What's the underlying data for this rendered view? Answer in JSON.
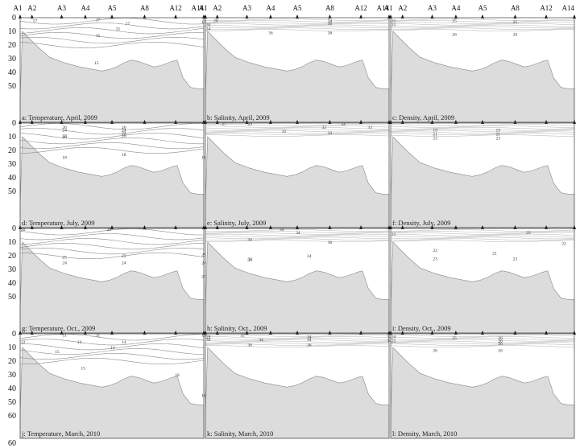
{
  "chart_data": {
    "type": "contour",
    "stations": [
      "A1",
      "A2",
      "A3",
      "A4",
      "A5",
      "A8",
      "A12",
      "A14"
    ],
    "station_distance": [
      0,
      16,
      56,
      88,
      124,
      168,
      210,
      248
    ],
    "y_axis": {
      "ticks": [
        0,
        10,
        20,
        30,
        40,
        50,
        60
      ],
      "ylim": [
        0,
        60
      ],
      "inverted": true
    },
    "bathymetry": {
      "x": [
        0,
        3,
        12,
        25,
        40,
        60,
        80,
        100,
        110,
        120,
        130,
        140,
        150,
        160,
        170,
        180,
        190,
        200,
        205,
        212,
        220,
        230,
        240,
        248
      ],
      "depth": [
        60,
        10,
        15,
        22,
        29,
        33,
        36,
        38,
        39,
        38,
        36,
        33,
        31,
        32,
        34,
        36,
        35,
        33,
        32,
        31,
        44,
        51,
        52,
        52
      ]
    },
    "panels": [
      {
        "caption": "a: Temperature, April, 2009",
        "labels": [
          {
            "t": "17",
            "d": 2,
            "x": 20
          },
          {
            "t": "17",
            "d": 1.5,
            "x": 105
          },
          {
            "t": "17",
            "d": 4,
            "x": 145
          },
          {
            "t": "17",
            "d": 3,
            "x": 248
          },
          {
            "t": "15",
            "d": 8,
            "x": 132
          },
          {
            "t": "15",
            "d": 13,
            "x": 105
          },
          {
            "t": "15",
            "d": 33,
            "x": 103
          }
        ]
      },
      {
        "caption": "b: Salinity, April, 2009",
        "labels": [
          {
            "t": "28",
            "d": 2,
            "x": 14
          },
          {
            "t": "30",
            "d": 5,
            "x": 4
          },
          {
            "t": "34",
            "d": 8,
            "x": 4
          },
          {
            "t": "34",
            "d": 2,
            "x": 168
          },
          {
            "t": "36",
            "d": 4,
            "x": 168
          },
          {
            "t": "36",
            "d": 11,
            "x": 88
          },
          {
            "t": "36",
            "d": 11,
            "x": 168
          }
        ]
      },
      {
        "caption": "c: Density, April, 2009",
        "labels": [
          {
            "t": "21",
            "d": 2,
            "x": 4
          },
          {
            "t": "25",
            "d": 5,
            "x": 4
          },
          {
            "t": "25",
            "d": 2,
            "x": 86
          },
          {
            "t": "25",
            "d": 3,
            "x": 168
          },
          {
            "t": "26",
            "d": 12,
            "x": 86
          },
          {
            "t": "26",
            "d": 12,
            "x": 168
          }
        ]
      },
      {
        "caption": "d: Temperature, July, 2009",
        "labels": [
          {
            "t": "26",
            "d": 3,
            "x": 60
          },
          {
            "t": "24",
            "d": 5,
            "x": 60
          },
          {
            "t": "22",
            "d": 9,
            "x": 60
          },
          {
            "t": "20",
            "d": 10,
            "x": 60
          },
          {
            "t": "26",
            "d": 3,
            "x": 140
          },
          {
            "t": "24",
            "d": 5,
            "x": 140
          },
          {
            "t": "22",
            "d": 7,
            "x": 140
          },
          {
            "t": "20",
            "d": 9,
            "x": 140
          },
          {
            "t": "18",
            "d": 25,
            "x": 60
          },
          {
            "t": "18",
            "d": 23,
            "x": 140
          },
          {
            "t": "18",
            "d": 25,
            "x": 248
          }
        ]
      },
      {
        "caption": "e: Salinity, July, 2009",
        "labels": [
          {
            "t": "27",
            "d": 0.5,
            "x": 25
          },
          {
            "t": "29",
            "d": 0.5,
            "x": 60
          },
          {
            "t": "32",
            "d": 6,
            "x": 106
          },
          {
            "t": "32",
            "d": 3,
            "x": 160
          },
          {
            "t": "33",
            "d": 3,
            "x": 222
          },
          {
            "t": "33",
            "d": 7,
            "x": 168
          },
          {
            "t": "34",
            "d": 0.5,
            "x": 186
          }
        ]
      },
      {
        "caption": "f: Density, July, 2009",
        "labels": [
          {
            "t": "19",
            "d": 5,
            "x": 60
          },
          {
            "t": "21",
            "d": 8,
            "x": 60
          },
          {
            "t": "23",
            "d": 11,
            "x": 60
          },
          {
            "t": "19",
            "d": 5,
            "x": 145
          },
          {
            "t": "21",
            "d": 8,
            "x": 145
          },
          {
            "t": "23",
            "d": 11,
            "x": 145
          }
        ]
      },
      {
        "caption": "g: Temperature, Oct., 2009",
        "labels": [
          {
            "t": "26",
            "d": 0.5,
            "x": 4
          },
          {
            "t": "26",
            "d": 0.5,
            "x": 120
          },
          {
            "t": "25",
            "d": 21,
            "x": 60
          },
          {
            "t": "25",
            "d": 20,
            "x": 140
          },
          {
            "t": "25",
            "d": 19,
            "x": 248
          },
          {
            "t": "24",
            "d": 25,
            "x": 60
          },
          {
            "t": "24",
            "d": 25,
            "x": 140
          },
          {
            "t": "24",
            "d": 25,
            "x": 248
          },
          {
            "t": "23",
            "d": 35,
            "x": 248
          }
        ]
      },
      {
        "caption": "h: Salinity, Oct., 2009",
        "labels": [
          {
            "t": "34",
            "d": 0.5,
            "x": 103
          },
          {
            "t": "34",
            "d": 8,
            "x": 60
          },
          {
            "t": "34",
            "d": 3,
            "x": 125
          },
          {
            "t": "36",
            "d": 10,
            "x": 168
          },
          {
            "t": "34",
            "d": 22,
            "x": 60
          },
          {
            "t": "34",
            "d": 20,
            "x": 140
          },
          {
            "t": "34",
            "d": 23,
            "x": 60
          }
        ]
      },
      {
        "caption": "i: Density, Oct., 2009",
        "labels": [
          {
            "t": "21",
            "d": 4,
            "x": 4
          },
          {
            "t": "22",
            "d": 3,
            "x": 186
          },
          {
            "t": "22",
            "d": 16,
            "x": 60
          },
          {
            "t": "22",
            "d": 18,
            "x": 140
          },
          {
            "t": "22",
            "d": 11,
            "x": 234
          },
          {
            "t": "23",
            "d": 22,
            "x": 60
          },
          {
            "t": "23",
            "d": 22,
            "x": 168
          }
        ]
      },
      {
        "caption": "j: Temperature, March, 2010",
        "labels": [
          {
            "t": "11",
            "d": 1,
            "x": 60
          },
          {
            "t": "11",
            "d": 1,
            "x": 105
          },
          {
            "t": "11",
            "d": 1,
            "x": 248
          },
          {
            "t": "12",
            "d": 6,
            "x": 4
          },
          {
            "t": "13",
            "d": 6,
            "x": 80
          },
          {
            "t": "14",
            "d": 6,
            "x": 140
          },
          {
            "t": "14",
            "d": 10,
            "x": 125
          },
          {
            "t": "15",
            "d": 13,
            "x": 50
          },
          {
            "t": "15",
            "d": 25,
            "x": 85
          },
          {
            "t": "16",
            "d": 30,
            "x": 212
          },
          {
            "t": "16",
            "d": 45,
            "x": 248
          }
        ]
      },
      {
        "caption": "k: Salinity, March, 2010",
        "labels": [
          {
            "t": "28",
            "d": 2,
            "x": 4
          },
          {
            "t": "30",
            "d": 4,
            "x": 4
          },
          {
            "t": "32",
            "d": 1,
            "x": 50
          },
          {
            "t": "34",
            "d": 4,
            "x": 75
          },
          {
            "t": "34",
            "d": 2,
            "x": 140
          },
          {
            "t": "34",
            "d": 4,
            "x": 140
          },
          {
            "t": "36",
            "d": 8,
            "x": 60
          },
          {
            "t": "36",
            "d": 8,
            "x": 140
          },
          {
            "t": "32",
            "d": 2,
            "x": 248
          },
          {
            "t": "34",
            "d": 5,
            "x": 248
          }
        ]
      },
      {
        "caption": "l: Density, March, 2010",
        "labels": [
          {
            "t": "24",
            "d": 2,
            "x": 4
          },
          {
            "t": "25",
            "d": 5,
            "x": 4
          },
          {
            "t": "25",
            "d": 3,
            "x": 86
          },
          {
            "t": "26",
            "d": 3,
            "x": 148
          },
          {
            "t": "26",
            "d": 5,
            "x": 148
          },
          {
            "t": "26",
            "d": 7,
            "x": 148
          },
          {
            "t": "26",
            "d": 12,
            "x": 60
          },
          {
            "t": "26",
            "d": 12,
            "x": 148
          }
        ]
      }
    ]
  }
}
